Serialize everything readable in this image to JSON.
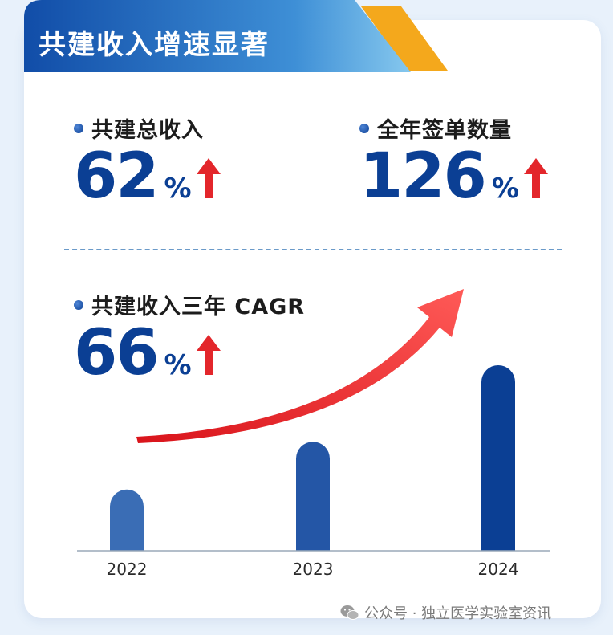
{
  "banner": {
    "title": "共建收入增速显著"
  },
  "metrics": [
    {
      "label": "共建总收入",
      "value": "62",
      "unit": "%"
    },
    {
      "label": "全年签单数量",
      "value": "126",
      "unit": "%"
    },
    {
      "label": "共建收入三年 CAGR",
      "value": "66",
      "unit": "%"
    }
  ],
  "colors": {
    "primary": "#0b3f94",
    "accent_red": "#e3262b",
    "banner_start": "#114da8",
    "banner_end": "#7ac0ea",
    "banner_tab": "#f4a81c"
  },
  "icons": {
    "up_arrow": "red-up-arrow-icon",
    "trend_arrow": "red-trend-arrow",
    "bullet": "blue-dot"
  },
  "chart_data": {
    "type": "bar",
    "categories": [
      "2022",
      "2023",
      "2024"
    ],
    "values": [
      1.0,
      1.78,
      3.03
    ],
    "title": "",
    "xlabel": "",
    "ylabel": "",
    "ylim": [
      0,
      3.2
    ],
    "trend_arrow": true
  },
  "watermark": {
    "text": "公众号 · 独立医学实验室资讯"
  }
}
